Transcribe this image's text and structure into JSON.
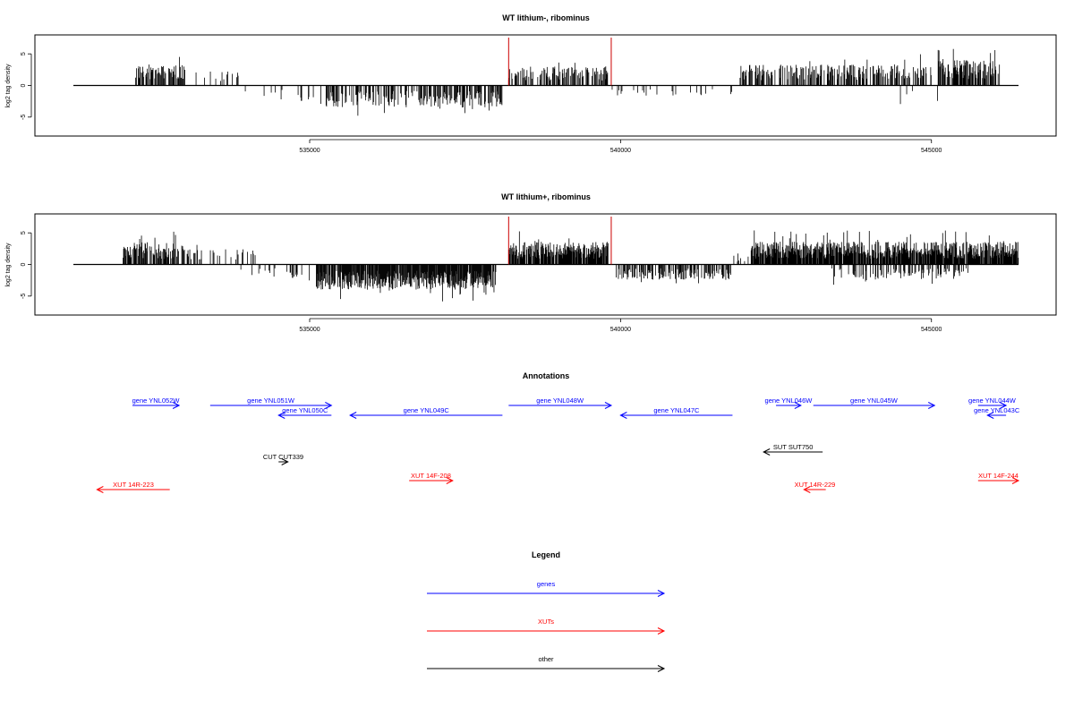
{
  "chart_data": [
    {
      "type": "bar",
      "title": "WT lithium-, ribominus",
      "ylabel": "log2 tag density",
      "xlim": [
        531200,
        546400
      ],
      "ylim": [
        -8,
        8
      ],
      "xticks": [
        535000,
        540000,
        545000
      ],
      "yticks": [
        -5,
        0,
        5
      ],
      "data_range": [
        532000,
        547000
      ],
      "marker_color": "#cc0000",
      "markers": [
        538200,
        539850
      ],
      "segments": [
        {
          "from": 532200,
          "to": 533000,
          "sign": 1,
          "density": 0.55,
          "amp": 3.2
        },
        {
          "from": 533000,
          "to": 534000,
          "sign": 1,
          "density": 0.06,
          "amp": 2.2
        },
        {
          "from": 533900,
          "to": 535200,
          "sign": -1,
          "density": 0.07,
          "amp": 2.3
        },
        {
          "from": 535250,
          "to": 538100,
          "sign": -1,
          "density": 0.45,
          "amp": 3.5
        },
        {
          "from": 538200,
          "to": 539800,
          "sign": 1,
          "density": 0.45,
          "amp": 3.0
        },
        {
          "from": 539800,
          "to": 541800,
          "sign": -1,
          "density": 0.09,
          "amp": 1.6
        },
        {
          "from": 541900,
          "to": 545000,
          "sign": 1,
          "density": 0.45,
          "amp": 3.3
        },
        {
          "from": 544400,
          "to": 545100,
          "sign": -1,
          "density": 0.04,
          "amp": 3.0
        },
        {
          "from": 545100,
          "to": 546100,
          "sign": 1,
          "density": 0.6,
          "amp": 4.0
        }
      ]
    },
    {
      "type": "bar",
      "title": "WT lithium+, ribominus",
      "ylabel": "log2 tag density",
      "xlim": [
        531200,
        546400
      ],
      "ylim": [
        -8,
        8
      ],
      "xticks": [
        535000,
        540000,
        545000
      ],
      "yticks": [
        -5,
        0,
        5
      ],
      "data_range": [
        532000,
        547000
      ],
      "marker_color": "#cc0000",
      "markers": [
        538200,
        539850
      ],
      "segments": [
        {
          "from": 532000,
          "to": 533000,
          "sign": 1,
          "density": 0.7,
          "amp": 3.5
        },
        {
          "from": 533000,
          "to": 534200,
          "sign": 1,
          "density": 0.15,
          "amp": 2.4
        },
        {
          "from": 533800,
          "to": 535000,
          "sign": -1,
          "density": 0.12,
          "amp": 2.0
        },
        {
          "from": 535100,
          "to": 538000,
          "sign": -1,
          "density": 0.85,
          "amp": 4.0
        },
        {
          "from": 538200,
          "to": 539800,
          "sign": 1,
          "density": 0.85,
          "amp": 3.6
        },
        {
          "from": 539900,
          "to": 541800,
          "sign": -1,
          "density": 0.45,
          "amp": 2.4
        },
        {
          "from": 541800,
          "to": 542100,
          "sign": 1,
          "density": 0.2,
          "amp": 1.4
        },
        {
          "from": 542100,
          "to": 546400,
          "sign": 1,
          "density": 0.9,
          "amp": 3.6
        },
        {
          "from": 543400,
          "to": 545600,
          "sign": -1,
          "density": 0.25,
          "amp": 2.3
        }
      ]
    }
  ],
  "annotations": {
    "title": "Annotations",
    "items": [
      {
        "label": "gene YNL052W",
        "start": 532150,
        "end": 532900,
        "dir": "right",
        "row": 1,
        "color": "#0000ff"
      },
      {
        "label": "gene YNL051W",
        "start": 533400,
        "end": 535350,
        "dir": "right",
        "row": 1,
        "color": "#0000ff"
      },
      {
        "label": "gene YNL050C",
        "start": 534500,
        "end": 535350,
        "dir": "left",
        "row": 2,
        "color": "#0000ff"
      },
      {
        "label": "gene YNL049C",
        "start": 535650,
        "end": 538100,
        "dir": "left",
        "row": 2,
        "color": "#0000ff"
      },
      {
        "label": "gene YNL048W",
        "start": 538200,
        "end": 539850,
        "dir": "right",
        "row": 1,
        "color": "#0000ff"
      },
      {
        "label": "gene YNL047C",
        "start": 540000,
        "end": 541800,
        "dir": "left",
        "row": 2,
        "color": "#0000ff"
      },
      {
        "label": "gene YNL046W",
        "start": 542500,
        "end": 542900,
        "dir": "right",
        "row": 1,
        "color": "#0000ff"
      },
      {
        "label": "gene YNL045W",
        "start": 543100,
        "end": 545050,
        "dir": "right",
        "row": 1,
        "color": "#0000ff"
      },
      {
        "label": "gene YNL044W",
        "start": 545750,
        "end": 546200,
        "dir": "right",
        "row": 1,
        "color": "#0000ff"
      },
      {
        "label": "gene YNL043C",
        "start": 545900,
        "end": 546200,
        "dir": "left",
        "row": 2,
        "color": "#0000ff"
      },
      {
        "label": "CUT CUT339",
        "start": 534500,
        "end": 534650,
        "dir": "right",
        "row": 3,
        "color": "#000000"
      },
      {
        "label": "SUT SUT750",
        "start": 542300,
        "end": 543250,
        "dir": "left",
        "row": 4,
        "color": "#000000"
      },
      {
        "label": "XUT 14R-223",
        "start": 531580,
        "end": 532750,
        "dir": "left",
        "row": 5,
        "color": "#ff0000"
      },
      {
        "label": "XUT 14F-208",
        "start": 536600,
        "end": 537300,
        "dir": "right",
        "row": 6,
        "color": "#ff0000"
      },
      {
        "label": "XUT 14R-229",
        "start": 542950,
        "end": 543300,
        "dir": "left",
        "row": 5,
        "color": "#ff0000"
      },
      {
        "label": "XUT 14F-244",
        "start": 545750,
        "end": 546400,
        "dir": "right",
        "row": 6,
        "color": "#ff0000"
      }
    ]
  },
  "legend": {
    "title": "Legend",
    "items": [
      {
        "label": "genes",
        "color": "#0000ff"
      },
      {
        "label": "XUTs",
        "color": "#ff0000"
      },
      {
        "label": "other",
        "color": "#000000"
      }
    ]
  }
}
